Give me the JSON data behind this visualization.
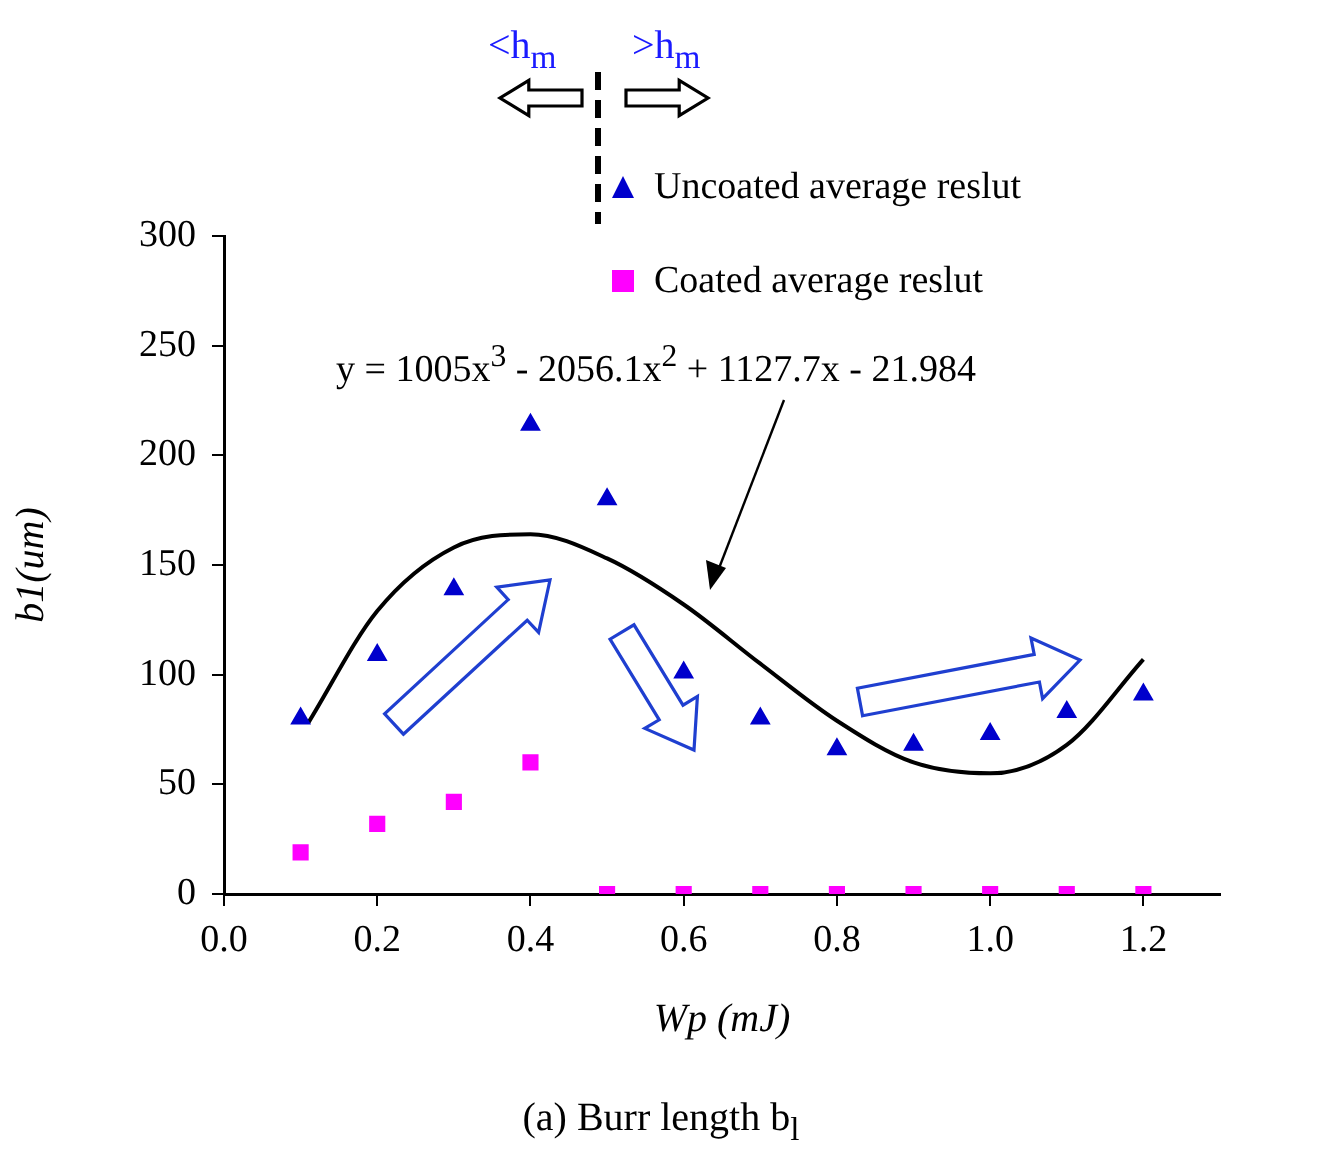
{
  "chart_data": {
    "type": "scatter",
    "xlabel": "Wp (mJ)",
    "ylabel": "b1(um)",
    "xlim": [
      0,
      1.3
    ],
    "ylim": [
      0,
      300
    ],
    "xticks": [
      {
        "value": 0,
        "label": "0.0"
      },
      {
        "value": 0.2,
        "label": "0.2"
      },
      {
        "value": 0.4,
        "label": "0.4"
      },
      {
        "value": 0.6,
        "label": "0.6"
      },
      {
        "value": 0.8,
        "label": "0.8"
      },
      {
        "value": 1,
        "label": "1.0"
      },
      {
        "value": 1.2,
        "label": "1.2"
      }
    ],
    "yticks": [
      0,
      50,
      100,
      150,
      200,
      250,
      300
    ],
    "grid": false,
    "legend": "top right",
    "x": [
      0.1,
      0.2,
      0.3,
      0.4,
      0.5,
      0.6,
      0.7,
      0.8,
      0.9,
      1.0,
      1.1,
      1.2
    ],
    "series": [
      {
        "name": "Uncoated average reslut",
        "color": "#0000cc",
        "marker": "triangle",
        "values": [
          80,
          109,
          139,
          214,
          180,
          101,
          80,
          66,
          68,
          73,
          83,
          91
        ]
      },
      {
        "name": "Coated average reslut",
        "color": "#ff00ff",
        "marker": "square",
        "values": [
          19,
          32,
          42,
          60,
          0,
          0,
          0,
          0,
          0,
          0,
          0,
          0
        ]
      },
      {
        "type": "line",
        "color": "#000000",
        "marker": "none",
        "x": [
          0.11,
          0.2,
          0.3,
          0.4,
          0.5,
          0.6,
          0.7,
          0.8,
          0.9,
          1.0,
          1.1,
          1.2
        ],
        "values": [
          78,
          129,
          158,
          164,
          153,
          132,
          105,
          79,
          60,
          55,
          68,
          107
        ]
      }
    ],
    "annotations": [
      "y = 1005x$^{3}$ - 2056.1x$^{2}$ + 1127.7x - 21.984",
      "<h$_{m}$",
      ">h$_{m}$",
      "(a) Burr length b$_{l}$"
    ]
  }
}
